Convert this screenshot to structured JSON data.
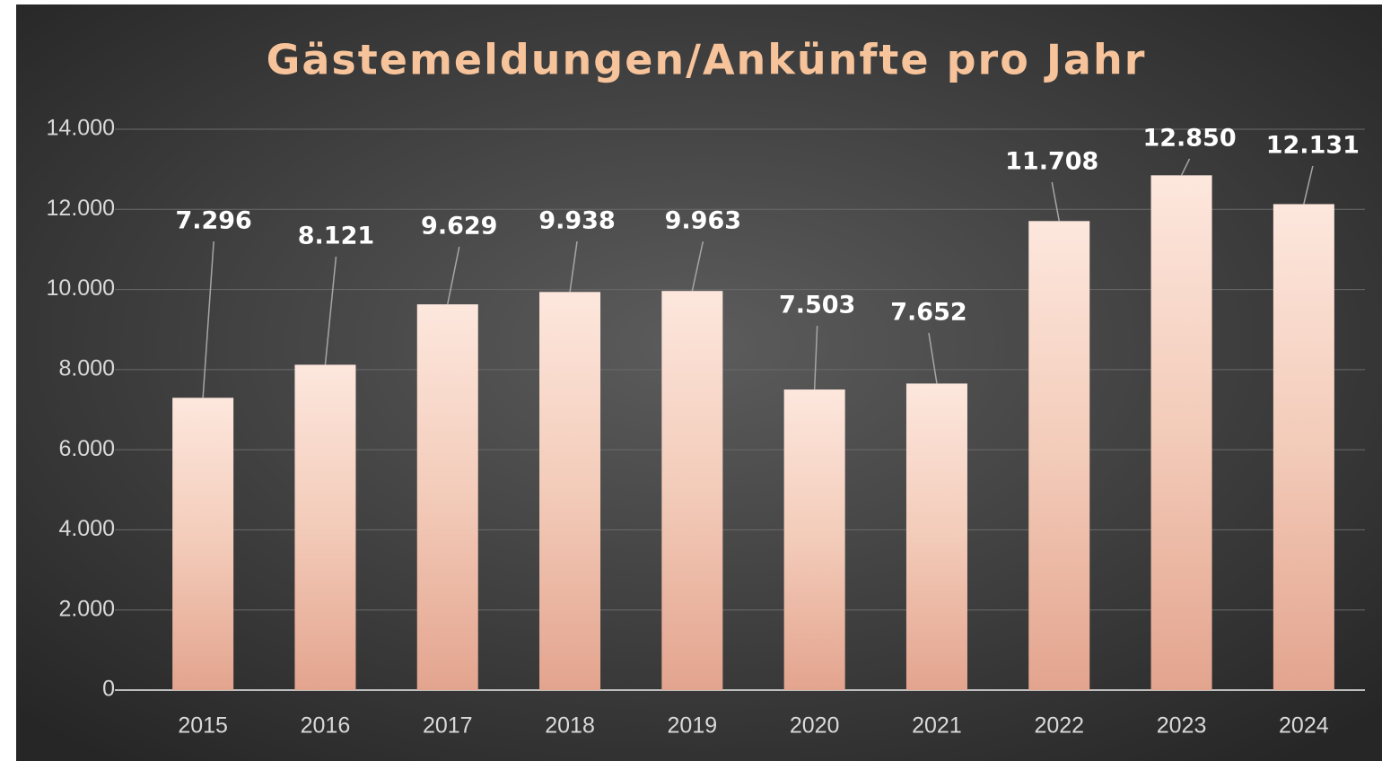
{
  "chart_data": {
    "type": "bar",
    "title": "Gästemeldungen/Ankünfte pro Jahr",
    "categories": [
      "2015",
      "2016",
      "2017",
      "2018",
      "2019",
      "2020",
      "2021",
      "2022",
      "2023",
      "2024"
    ],
    "values": [
      7296,
      8121,
      9629,
      9938,
      9963,
      7503,
      7652,
      11708,
      12850,
      12131
    ],
    "value_labels": [
      "7.296",
      "8.121",
      "9.629",
      "9.938",
      "9.963",
      "7.503",
      "7.652",
      "11.708",
      "12.850",
      "12.131"
    ],
    "color": "#f0c2ad",
    "ylim": [
      0,
      14000
    ],
    "yticks": [
      0,
      {
        "value": 2000,
        "label": "2.000"
      },
      {
        "value": 4000,
        "label": "4.000"
      },
      {
        "value": 6000,
        "label": "6.000"
      },
      {
        "value": 8000,
        "label": "8.000"
      },
      {
        "value": 10000,
        "label": "10.000"
      },
      {
        "value": 12000,
        "label": "12.000"
      },
      {
        "value": 14000,
        "label": "14.000"
      }
    ],
    "grid": true
  }
}
